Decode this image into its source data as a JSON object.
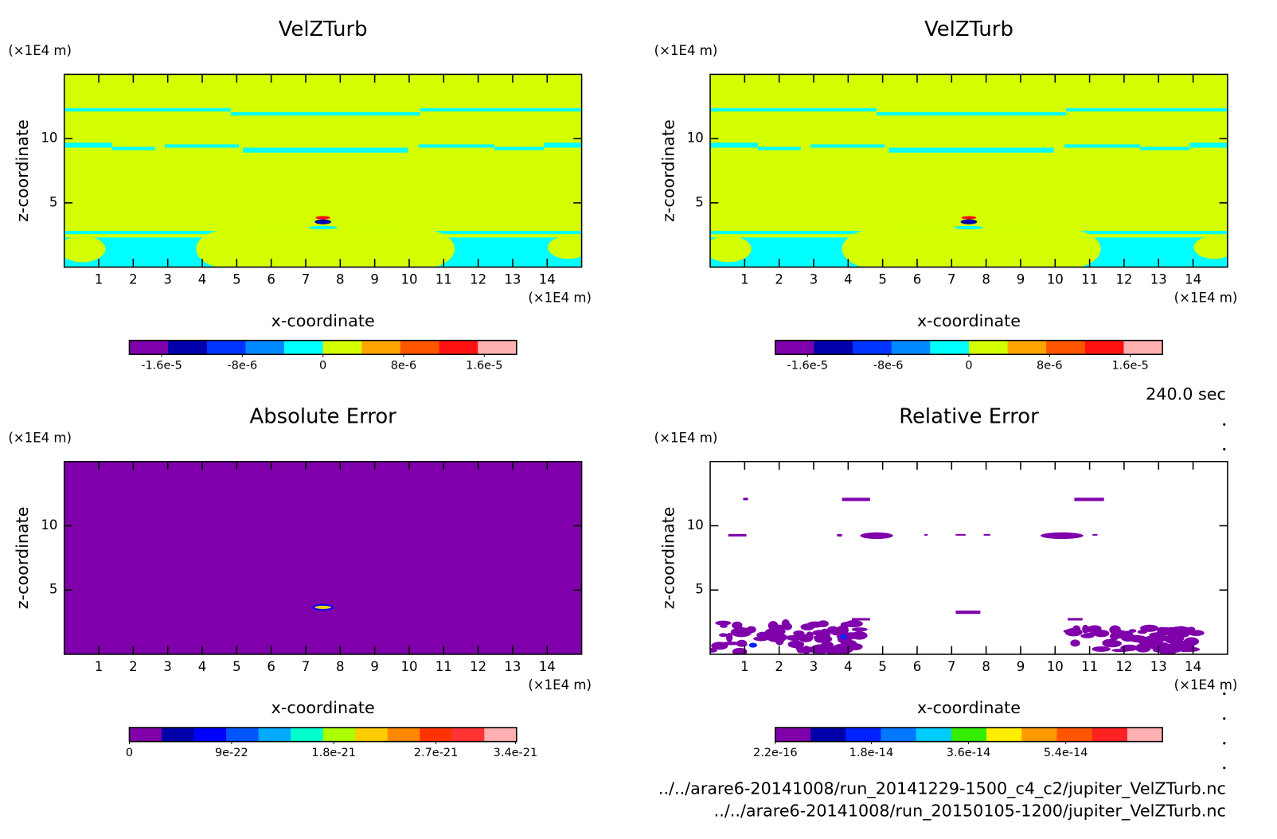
{
  "panels": [
    {
      "title": "VelZTurb",
      "x_label": "x-coordinate",
      "y_label": "z-coordinate",
      "x_unit": "(×1E4 m)",
      "y_unit": "(×1E4 m)",
      "xlim": [
        0,
        15
      ],
      "ylim": [
        0,
        15
      ],
      "xticks": [
        1,
        2,
        3,
        4,
        5,
        6,
        7,
        8,
        9,
        10,
        11,
        12,
        13,
        14
      ],
      "yticks": [
        5,
        10
      ],
      "colorbar": {
        "lim": [
          -1.92e-05,
          1.92e-05
        ],
        "ticks": [
          {
            "value": -1.6e-05,
            "label": "-1.6e-5"
          },
          {
            "value": -8e-06,
            "label": "-8e-6"
          },
          0,
          {
            "value": 8e-06,
            "label": "8e-6"
          },
          {
            "value": 1.6e-05,
            "label": "1.6e-5"
          }
        ],
        "colors": [
          "#7f00aa",
          "#0000aa",
          "#0033ff",
          "#0088ff",
          "#00ffff",
          "#d4ff00",
          "#ffa500",
          "#ff5500",
          "#ff1111",
          "#ffb0b0"
        ]
      }
    },
    {
      "title": "VelZTurb",
      "x_label": "x-coordinate",
      "y_label": "z-coordinate",
      "x_unit": "(×1E4 m)",
      "y_unit": "(×1E4 m)",
      "xlim": [
        0,
        15
      ],
      "ylim": [
        0,
        15
      ],
      "xticks": [
        1,
        2,
        3,
        4,
        5,
        6,
        7,
        8,
        9,
        10,
        11,
        12,
        13,
        14
      ],
      "yticks": [
        5,
        10
      ],
      "colorbar": {
        "lim": [
          -1.92e-05,
          1.92e-05
        ],
        "ticks": [
          {
            "value": -1.6e-05,
            "label": "-1.6e-5"
          },
          {
            "value": -8e-06,
            "label": "-8e-6"
          },
          0,
          {
            "value": 8e-06,
            "label": "8e-6"
          },
          {
            "value": 1.6e-05,
            "label": "1.6e-5"
          }
        ],
        "colors": [
          "#7f00aa",
          "#0000aa",
          "#0033ff",
          "#0088ff",
          "#00ffff",
          "#d4ff00",
          "#ffa500",
          "#ff5500",
          "#ff1111",
          "#ffb0b0"
        ]
      }
    },
    {
      "title": "Absolute Error",
      "x_label": "x-coordinate",
      "y_label": "z-coordinate",
      "x_unit": "(×1E4 m)",
      "y_unit": "(×1E4 m)",
      "xlim": [
        0,
        15
      ],
      "ylim": [
        0,
        15
      ],
      "xticks": [
        1,
        2,
        3,
        4,
        5,
        6,
        7,
        8,
        9,
        10,
        11,
        12,
        13,
        14
      ],
      "yticks": [
        5,
        10
      ],
      "colorbar": {
        "lim": [
          0,
          3.41e-21
        ],
        "ticks": [
          0,
          {
            "value": 9e-22,
            "label": "9e-22"
          },
          {
            "value": 1.8e-21,
            "label": "1.8e-21"
          },
          {
            "value": 2.7e-21,
            "label": "2.7e-21"
          },
          {
            "value": 3.4e-21,
            "label": "3.4e-21"
          }
        ],
        "colors": [
          "#7f00aa",
          "#0000aa",
          "#0000ff",
          "#0055ff",
          "#00aaff",
          "#00ffcc",
          "#aaff00",
          "#ffcc00",
          "#ff8800",
          "#ff3300",
          "#ff3333",
          "#ffb0b0"
        ]
      }
    },
    {
      "title": "Relative Error",
      "x_label": "x-coordinate",
      "y_label": "z-coordinate",
      "x_unit": "(×1E4 m)",
      "y_unit": "(×1E4 m)",
      "xlim": [
        0,
        15
      ],
      "ylim": [
        0,
        15
      ],
      "xticks": [
        1,
        2,
        3,
        4,
        5,
        6,
        7,
        8,
        9,
        10,
        11,
        12,
        13,
        14
      ],
      "yticks": [
        5,
        10
      ],
      "colorbar": {
        "lim": [
          2.2e-16,
          7.19e-14
        ],
        "ticks": [
          {
            "value": 2.2e-16,
            "label": "2.2e-16"
          },
          {
            "value": 1.8e-14,
            "label": "1.8e-14"
          },
          {
            "value": 3.6e-14,
            "label": "3.6e-14"
          },
          {
            "value": 5.4e-14,
            "label": "5.4e-14"
          }
        ],
        "colors": [
          "#7f00aa",
          "#0000aa",
          "#0022ff",
          "#0077ff",
          "#00ccff",
          "#33ee00",
          "#ffee00",
          "#ff9900",
          "#ff5500",
          "#ff2222",
          "#ffb0b0"
        ]
      }
    }
  ],
  "time": "240.0 sec",
  "files": [
    "../../arare6-20141008/run_20141229-1500_c4_c2/jupiter_VelZTurb.nc",
    "../../arare6-20141008/run_20150105-1200/jupiter_VelZTurb.nc"
  ]
}
